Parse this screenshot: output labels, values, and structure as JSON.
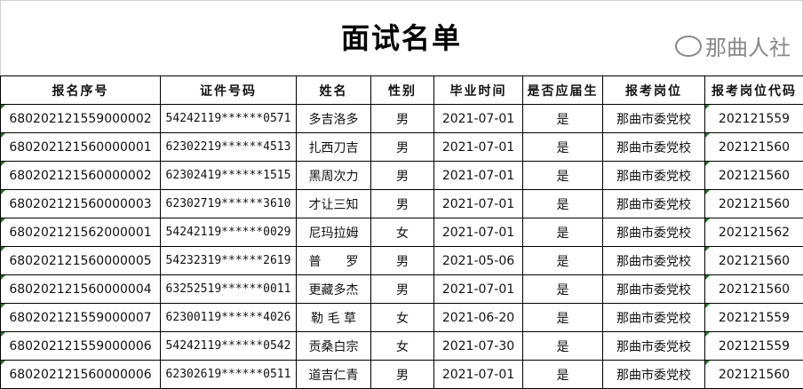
{
  "title": "面试名单",
  "columns": [
    "报名序号",
    "证件号码",
    "姓名",
    "性别",
    "毕业时间",
    "是否应届生",
    "报考岗位",
    "报考岗位代码"
  ],
  "rows": [
    [
      "680202121559000002",
      "54242119******0571",
      "多吉洛多",
      "男",
      "2021-07-01",
      "是",
      "那曲市委党校",
      "202121559"
    ],
    [
      "680202121560000001",
      "62302219******4513",
      "扎西刀吉",
      "男",
      "2021-07-01",
      "是",
      "那曲市委党校",
      "202121560"
    ],
    [
      "680202121560000002",
      "62302419******1515",
      "黑周次力",
      "男",
      "2021-07-01",
      "是",
      "那曲市委党校",
      "202121560"
    ],
    [
      "680202121560000003",
      "62302719******3610",
      "才让三知",
      "男",
      "2021-07-01",
      "是",
      "那曲市委党校",
      "202121560"
    ],
    [
      "680202121562000001",
      "54242119******0029",
      "尼玛拉姆",
      "女",
      "2021-07-01",
      "是",
      "那曲市委党校",
      "202121562"
    ],
    [
      "680202121560000005",
      "54232319******2619",
      "普　　罗",
      "男",
      "2021-05-06",
      "是",
      "那曲市委党校",
      "202121560"
    ],
    [
      "680202121560000004",
      "63252519******0011",
      "更藏多杰",
      "男",
      "2021-07-01",
      "是",
      "那曲市委党校",
      "202121560"
    ],
    [
      "680202121559000007",
      "62300119******4026",
      "勒 毛 草",
      "女",
      "2021-06-20",
      "是",
      "那曲市委党校",
      "202121559"
    ],
    [
      "680202121559000006",
      "54242119******0542",
      "贡桑白宗",
      "女",
      "2021-07-30",
      "是",
      "那曲市委党校",
      "202121559"
    ],
    [
      "680202121560000006",
      "62302619******0511",
      "道吉仁青",
      "男",
      "2021-07-01",
      "是",
      "那曲市委党校",
      "202121560"
    ]
  ],
  "watermark": {
    "text": "那曲人社",
    "icon": "wechat-icon"
  },
  "colors": {
    "cell_marker": "#1f7a1f",
    "border": "#000000"
  }
}
